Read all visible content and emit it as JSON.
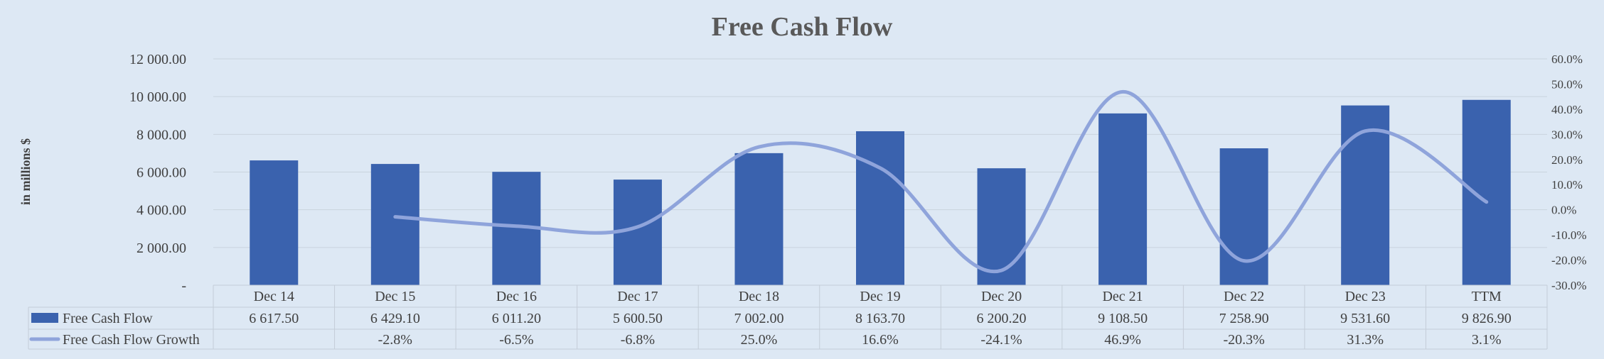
{
  "chart_data": {
    "type": "bar",
    "title": "Free Cash Flow",
    "ylabel": "in millions $",
    "categories": [
      "Dec 14",
      "Dec 15",
      "Dec 16",
      "Dec 17",
      "Dec 18",
      "Dec 19",
      "Dec 20",
      "Dec 21",
      "Dec 22",
      "Dec 23",
      "TTM"
    ],
    "ylim": [
      0,
      12000
    ],
    "yticks": [
      "-",
      "2 000.00",
      "4 000.00",
      "6 000.00",
      "8 000.00",
      "10 000.00",
      "12 000.00"
    ],
    "y2lim": [
      -30,
      60
    ],
    "y2ticks": [
      "-30.0%",
      "-20.0%",
      "-10.0%",
      "0.0%",
      "10.0%",
      "20.0%",
      "30.0%",
      "40.0%",
      "50.0%",
      "60.0%"
    ],
    "grid": true,
    "series": [
      {
        "name": "Free Cash Flow",
        "type": "bar",
        "axis": "left",
        "color": "#3a62ae",
        "values": [
          6617.5,
          6429.1,
          6011.2,
          5600.5,
          7002.0,
          8163.7,
          6200.2,
          9108.5,
          7258.9,
          9531.6,
          9826.9
        ],
        "labels": [
          "6 617.50",
          "6 429.10",
          "6 011.20",
          "5 600.50",
          "7 002.00",
          "8 163.70",
          "6 200.20",
          "9 108.50",
          "7 258.90",
          "9 531.60",
          "9 826.90"
        ]
      },
      {
        "name": "Free Cash Flow Growth",
        "type": "line",
        "axis": "right",
        "color": "#8fa4db",
        "values": [
          null,
          -2.8,
          -6.5,
          -6.8,
          25.0,
          16.6,
          -24.1,
          46.9,
          -20.3,
          31.3,
          3.1
        ],
        "labels": [
          "",
          "-2.8%",
          "-6.5%",
          "-6.8%",
          "25.0%",
          "16.6%",
          "-24.1%",
          "46.9%",
          "-20.3%",
          "31.3%",
          "3.1%"
        ]
      }
    ]
  }
}
